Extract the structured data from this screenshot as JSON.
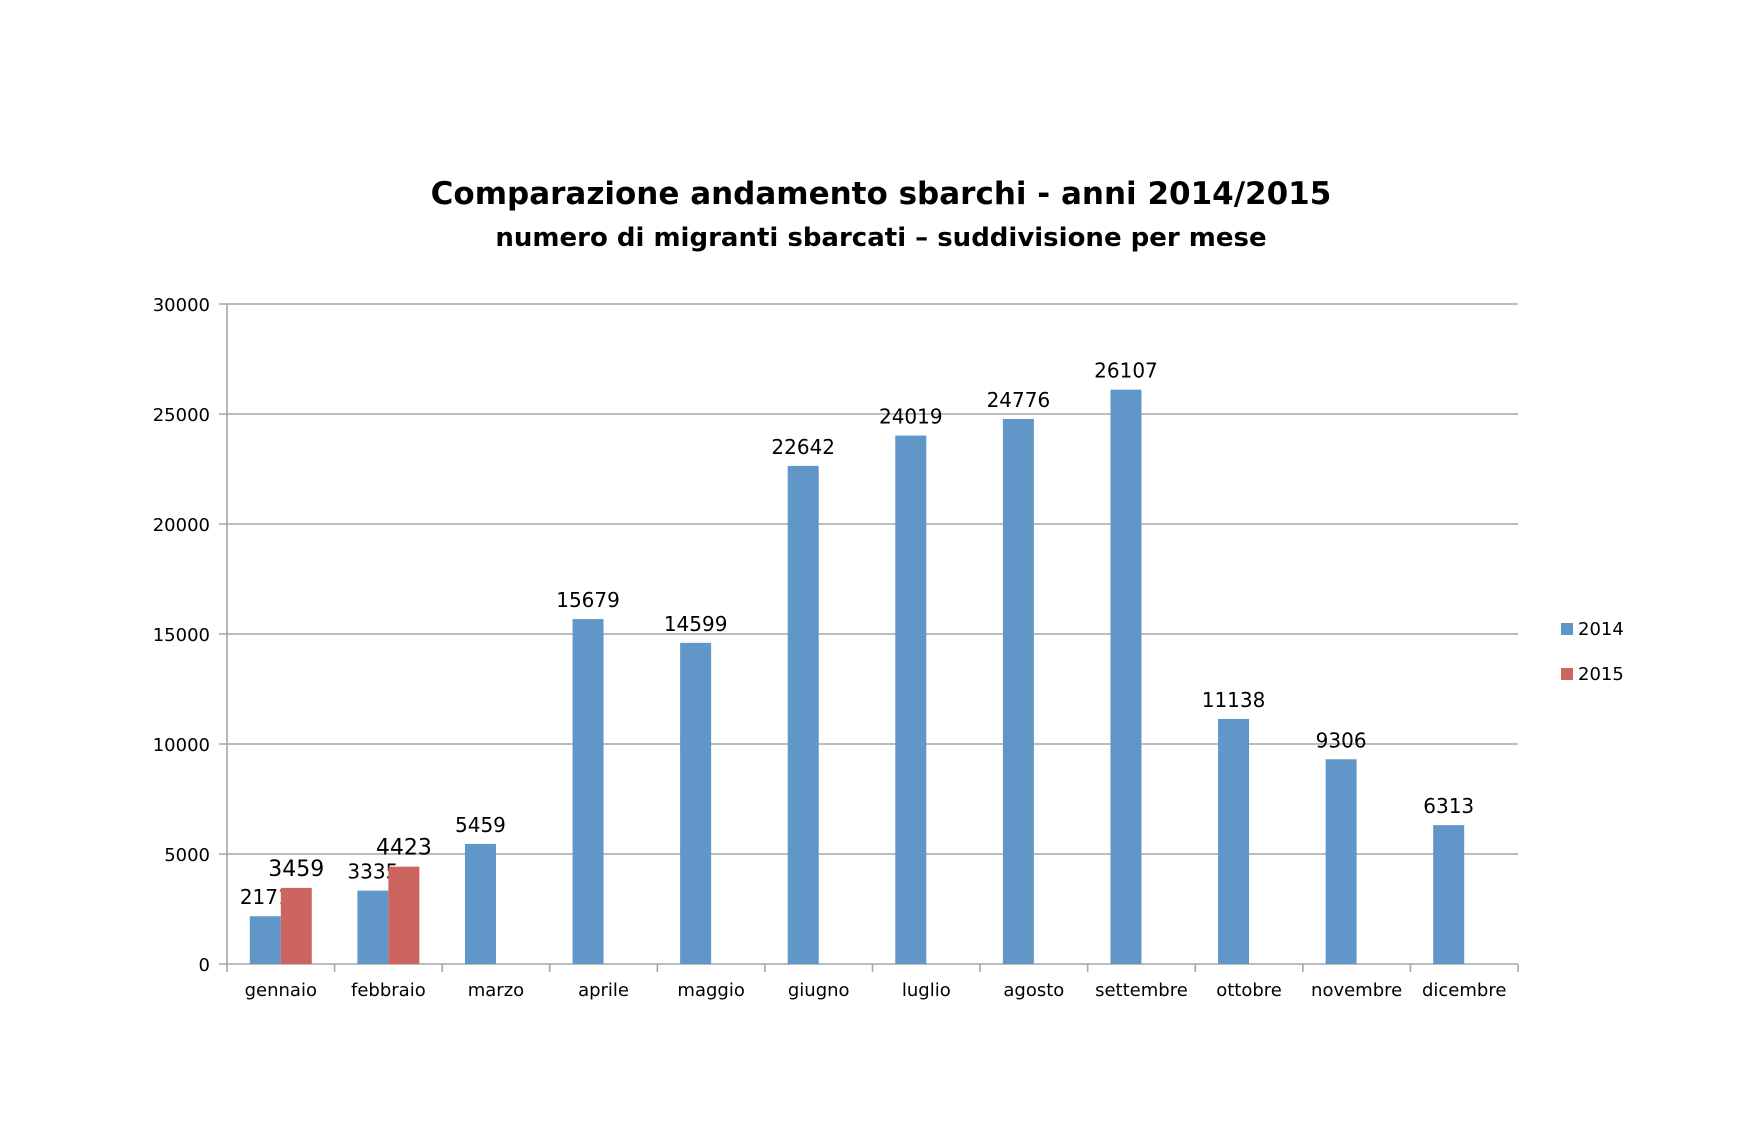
{
  "chart_data": {
    "type": "bar",
    "title": "Comparazione andamento sbarchi - anni 2014/2015",
    "subtitle": "numero di migranti sbarcati – suddivisione per mese",
    "xlabel": "",
    "ylabel": "",
    "ylim": [
      0,
      30000
    ],
    "yticks": [
      0,
      5000,
      10000,
      15000,
      20000,
      25000,
      30000
    ],
    "grid": true,
    "legend_position": "right",
    "categories": [
      "gennaio",
      "febbraio",
      "marzo",
      "aprile",
      "maggio",
      "giugno",
      "luglio",
      "agosto",
      "settembre",
      "ottobre",
      "novembre",
      "dicembre"
    ],
    "series": [
      {
        "name": "2014",
        "color": "#6096C8",
        "values": [
          2171,
          3335,
          5459,
          15679,
          14599,
          22642,
          24019,
          24776,
          26107,
          11138,
          9306,
          6313
        ]
      },
      {
        "name": "2015",
        "color": "#CC6560",
        "values": [
          3459,
          4423,
          null,
          null,
          null,
          null,
          null,
          null,
          null,
          null,
          null,
          null
        ]
      }
    ]
  }
}
